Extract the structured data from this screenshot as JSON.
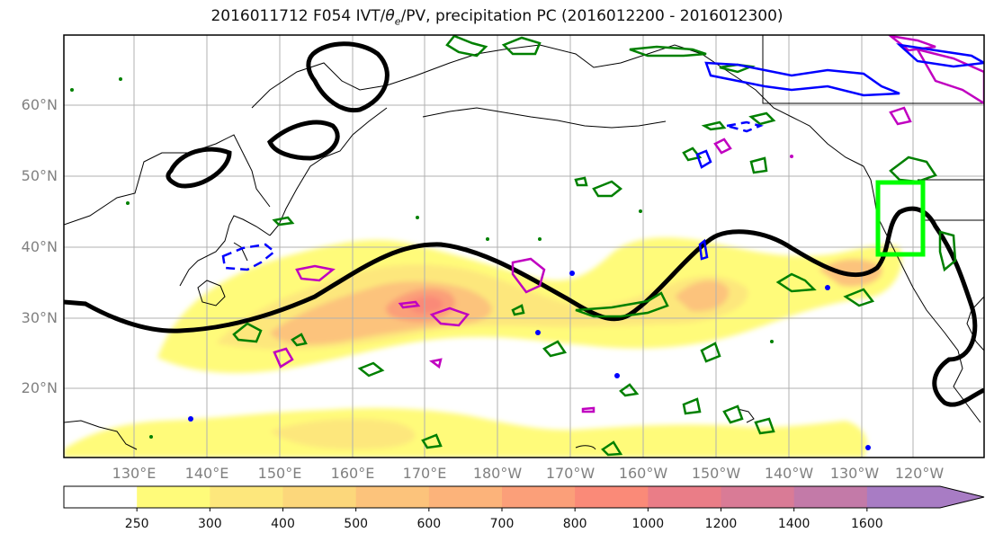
{
  "title": "2016011712 F054 IVT/θe/PV, precipitation PC (2016012200 - 2016012300)",
  "title_parts": {
    "pre": "2016011712 F054 IVT/",
    "theta": "θ",
    "sub": "e",
    "post": "/PV, precipitation PC (2016012200 - 2016012300)"
  },
  "lat_labels": [
    "60°N",
    "50°N",
    "40°N",
    "30°N",
    "20°N"
  ],
  "lon_labels": [
    "130°E",
    "140°E",
    "150°E",
    "160°E",
    "170°E",
    "180°W",
    "170°W",
    "160°W",
    "150°W",
    "140°W",
    "130°W",
    "120°W"
  ],
  "colorbar": {
    "labels": [
      "250",
      "300",
      "400",
      "500",
      "600",
      "700",
      "800",
      "1000",
      "1200",
      "1400",
      "1600"
    ],
    "colors": [
      "#ffffff",
      "#fffb7a",
      "#fde77c",
      "#fcd77b",
      "#fcc37b",
      "#fcb37a",
      "#fb9f79",
      "#fa8a78",
      "#ea7d87",
      "#d97b96",
      "#c37aa8",
      "#a87cc4"
    ],
    "units": ""
  },
  "colors": {
    "theta_e_contour": "#000000",
    "pv_positive": "#008000",
    "pv_magenta": "#c000c0",
    "pv_negative": "#0000ff",
    "precip_box": "#00ff00",
    "coastline": "#000000",
    "grid": "#b0b0b0"
  }
}
